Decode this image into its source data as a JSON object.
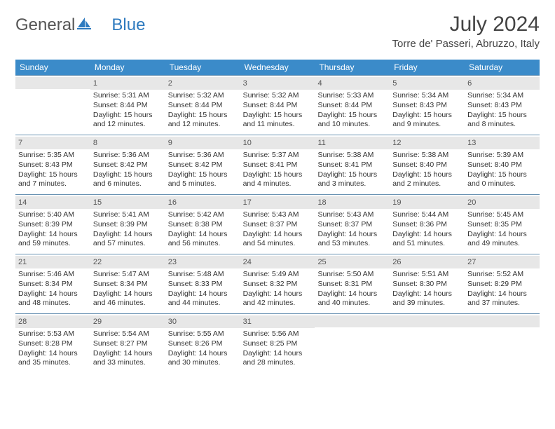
{
  "brand": {
    "name_part1": "General",
    "name_part2": "Blue"
  },
  "title": "July 2024",
  "location": "Torre de' Passeri, Abruzzo, Italy",
  "colors": {
    "header_bg": "#3b8bc9",
    "divider": "#6a93b3",
    "daynum_bg": "#e7e7e7",
    "logo_accent": "#2f7bbf"
  },
  "day_names": [
    "Sunday",
    "Monday",
    "Tuesday",
    "Wednesday",
    "Thursday",
    "Friday",
    "Saturday"
  ],
  "weeks": [
    [
      {
        "n": "",
        "sunrise": "",
        "sunset": "",
        "d1": "",
        "d2": ""
      },
      {
        "n": "1",
        "sunrise": "Sunrise: 5:31 AM",
        "sunset": "Sunset: 8:44 PM",
        "d1": "Daylight: 15 hours",
        "d2": "and 12 minutes."
      },
      {
        "n": "2",
        "sunrise": "Sunrise: 5:32 AM",
        "sunset": "Sunset: 8:44 PM",
        "d1": "Daylight: 15 hours",
        "d2": "and 12 minutes."
      },
      {
        "n": "3",
        "sunrise": "Sunrise: 5:32 AM",
        "sunset": "Sunset: 8:44 PM",
        "d1": "Daylight: 15 hours",
        "d2": "and 11 minutes."
      },
      {
        "n": "4",
        "sunrise": "Sunrise: 5:33 AM",
        "sunset": "Sunset: 8:44 PM",
        "d1": "Daylight: 15 hours",
        "d2": "and 10 minutes."
      },
      {
        "n": "5",
        "sunrise": "Sunrise: 5:34 AM",
        "sunset": "Sunset: 8:43 PM",
        "d1": "Daylight: 15 hours",
        "d2": "and 9 minutes."
      },
      {
        "n": "6",
        "sunrise": "Sunrise: 5:34 AM",
        "sunset": "Sunset: 8:43 PM",
        "d1": "Daylight: 15 hours",
        "d2": "and 8 minutes."
      }
    ],
    [
      {
        "n": "7",
        "sunrise": "Sunrise: 5:35 AM",
        "sunset": "Sunset: 8:43 PM",
        "d1": "Daylight: 15 hours",
        "d2": "and 7 minutes."
      },
      {
        "n": "8",
        "sunrise": "Sunrise: 5:36 AM",
        "sunset": "Sunset: 8:42 PM",
        "d1": "Daylight: 15 hours",
        "d2": "and 6 minutes."
      },
      {
        "n": "9",
        "sunrise": "Sunrise: 5:36 AM",
        "sunset": "Sunset: 8:42 PM",
        "d1": "Daylight: 15 hours",
        "d2": "and 5 minutes."
      },
      {
        "n": "10",
        "sunrise": "Sunrise: 5:37 AM",
        "sunset": "Sunset: 8:41 PM",
        "d1": "Daylight: 15 hours",
        "d2": "and 4 minutes."
      },
      {
        "n": "11",
        "sunrise": "Sunrise: 5:38 AM",
        "sunset": "Sunset: 8:41 PM",
        "d1": "Daylight: 15 hours",
        "d2": "and 3 minutes."
      },
      {
        "n": "12",
        "sunrise": "Sunrise: 5:38 AM",
        "sunset": "Sunset: 8:40 PM",
        "d1": "Daylight: 15 hours",
        "d2": "and 2 minutes."
      },
      {
        "n": "13",
        "sunrise": "Sunrise: 5:39 AM",
        "sunset": "Sunset: 8:40 PM",
        "d1": "Daylight: 15 hours",
        "d2": "and 0 minutes."
      }
    ],
    [
      {
        "n": "14",
        "sunrise": "Sunrise: 5:40 AM",
        "sunset": "Sunset: 8:39 PM",
        "d1": "Daylight: 14 hours",
        "d2": "and 59 minutes."
      },
      {
        "n": "15",
        "sunrise": "Sunrise: 5:41 AM",
        "sunset": "Sunset: 8:39 PM",
        "d1": "Daylight: 14 hours",
        "d2": "and 57 minutes."
      },
      {
        "n": "16",
        "sunrise": "Sunrise: 5:42 AM",
        "sunset": "Sunset: 8:38 PM",
        "d1": "Daylight: 14 hours",
        "d2": "and 56 minutes."
      },
      {
        "n": "17",
        "sunrise": "Sunrise: 5:43 AM",
        "sunset": "Sunset: 8:37 PM",
        "d1": "Daylight: 14 hours",
        "d2": "and 54 minutes."
      },
      {
        "n": "18",
        "sunrise": "Sunrise: 5:43 AM",
        "sunset": "Sunset: 8:37 PM",
        "d1": "Daylight: 14 hours",
        "d2": "and 53 minutes."
      },
      {
        "n": "19",
        "sunrise": "Sunrise: 5:44 AM",
        "sunset": "Sunset: 8:36 PM",
        "d1": "Daylight: 14 hours",
        "d2": "and 51 minutes."
      },
      {
        "n": "20",
        "sunrise": "Sunrise: 5:45 AM",
        "sunset": "Sunset: 8:35 PM",
        "d1": "Daylight: 14 hours",
        "d2": "and 49 minutes."
      }
    ],
    [
      {
        "n": "21",
        "sunrise": "Sunrise: 5:46 AM",
        "sunset": "Sunset: 8:34 PM",
        "d1": "Daylight: 14 hours",
        "d2": "and 48 minutes."
      },
      {
        "n": "22",
        "sunrise": "Sunrise: 5:47 AM",
        "sunset": "Sunset: 8:34 PM",
        "d1": "Daylight: 14 hours",
        "d2": "and 46 minutes."
      },
      {
        "n": "23",
        "sunrise": "Sunrise: 5:48 AM",
        "sunset": "Sunset: 8:33 PM",
        "d1": "Daylight: 14 hours",
        "d2": "and 44 minutes."
      },
      {
        "n": "24",
        "sunrise": "Sunrise: 5:49 AM",
        "sunset": "Sunset: 8:32 PM",
        "d1": "Daylight: 14 hours",
        "d2": "and 42 minutes."
      },
      {
        "n": "25",
        "sunrise": "Sunrise: 5:50 AM",
        "sunset": "Sunset: 8:31 PM",
        "d1": "Daylight: 14 hours",
        "d2": "and 40 minutes."
      },
      {
        "n": "26",
        "sunrise": "Sunrise: 5:51 AM",
        "sunset": "Sunset: 8:30 PM",
        "d1": "Daylight: 14 hours",
        "d2": "and 39 minutes."
      },
      {
        "n": "27",
        "sunrise": "Sunrise: 5:52 AM",
        "sunset": "Sunset: 8:29 PM",
        "d1": "Daylight: 14 hours",
        "d2": "and 37 minutes."
      }
    ],
    [
      {
        "n": "28",
        "sunrise": "Sunrise: 5:53 AM",
        "sunset": "Sunset: 8:28 PM",
        "d1": "Daylight: 14 hours",
        "d2": "and 35 minutes."
      },
      {
        "n": "29",
        "sunrise": "Sunrise: 5:54 AM",
        "sunset": "Sunset: 8:27 PM",
        "d1": "Daylight: 14 hours",
        "d2": "and 33 minutes."
      },
      {
        "n": "30",
        "sunrise": "Sunrise: 5:55 AM",
        "sunset": "Sunset: 8:26 PM",
        "d1": "Daylight: 14 hours",
        "d2": "and 30 minutes."
      },
      {
        "n": "31",
        "sunrise": "Sunrise: 5:56 AM",
        "sunset": "Sunset: 8:25 PM",
        "d1": "Daylight: 14 hours",
        "d2": "and 28 minutes."
      },
      {
        "n": "",
        "sunrise": "",
        "sunset": "",
        "d1": "",
        "d2": ""
      },
      {
        "n": "",
        "sunrise": "",
        "sunset": "",
        "d1": "",
        "d2": ""
      },
      {
        "n": "",
        "sunrise": "",
        "sunset": "",
        "d1": "",
        "d2": ""
      }
    ]
  ]
}
